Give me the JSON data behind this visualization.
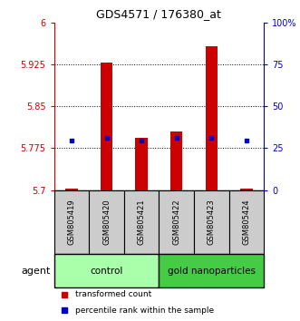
{
  "title": "GDS4571 / 176380_at",
  "samples": [
    "GSM805419",
    "GSM805420",
    "GSM805421",
    "GSM805422",
    "GSM805423",
    "GSM805424"
  ],
  "red_bar_bottom": 5.7,
  "red_bar_top": [
    5.702,
    5.928,
    5.793,
    5.805,
    5.958,
    5.702
  ],
  "blue_y": [
    5.788,
    5.793,
    5.788,
    5.793,
    5.793,
    5.788
  ],
  "ylim": [
    5.7,
    6.0
  ],
  "yticks_left": [
    5.7,
    5.775,
    5.85,
    5.925,
    6.0
  ],
  "yticks_right": [
    0,
    25,
    50,
    75,
    100
  ],
  "ytick_labels_left": [
    "5.7",
    "5.775",
    "5.85",
    "5.925",
    "6"
  ],
  "ytick_labels_right": [
    "0",
    "25",
    "50",
    "75",
    "100%"
  ],
  "groups": [
    {
      "label": "control",
      "color": "#aaffaa"
    },
    {
      "label": "gold nanoparticles",
      "color": "#44cc44"
    }
  ],
  "agent_label": "agent",
  "bar_color": "#cc0000",
  "dot_color": "#0000cc",
  "bar_width": 0.35,
  "background_color": "#ffffff",
  "left_axis_color": "#cc0000",
  "right_axis_color": "#0000cc",
  "sample_box_color": "#cccccc",
  "legend_red_label": "transformed count",
  "legend_blue_label": "percentile rank within the sample"
}
